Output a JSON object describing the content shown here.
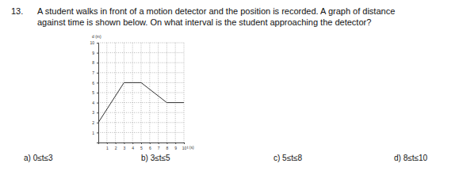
{
  "question": {
    "number": "13.",
    "text_lines": [
      "A student walks in front of a motion detector and the position is recorded. A graph of distance",
      "against time is shown below. On what interval is the student approaching the detector?"
    ],
    "choices": [
      "a) 0≤t≤3",
      "b) 3≤t≤5",
      "c) 5≤t≤8",
      "d) 8≤t≤10"
    ]
  },
  "chart_data": {
    "type": "line",
    "xlabel": "t (s)",
    "ylabel": "d (m)",
    "x": [
      0,
      3,
      5,
      8,
      10
    ],
    "values": [
      2,
      6,
      6,
      4,
      4
    ],
    "color": "#333333",
    "xlim": [
      0,
      10
    ],
    "ylim": [
      0,
      10
    ],
    "xticks": [
      1,
      2,
      3,
      4,
      5,
      6,
      7,
      8,
      9,
      10
    ],
    "yticks": [
      1,
      2,
      3,
      4,
      5,
      6,
      7,
      8,
      9,
      10
    ],
    "grid": true
  }
}
